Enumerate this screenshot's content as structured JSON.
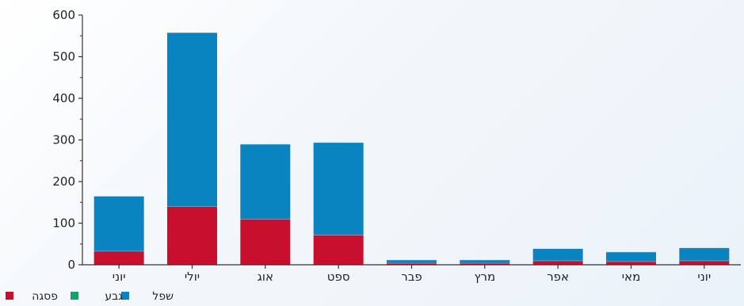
{
  "chart_data": {
    "type": "bar",
    "stacked": true,
    "categories": [
      "יוני",
      "יולי",
      "אוג",
      "ספט",
      "פבר",
      "מרץ",
      "אפר",
      "מאי",
      "יוני"
    ],
    "series": [
      {
        "name": "פסגה",
        "color": "#c8102e",
        "values": [
          33,
          140,
          110,
          72,
          4,
          4,
          10,
          8,
          10
        ]
      },
      {
        "name": "גבע",
        "color": "#16a06a",
        "values": [
          0,
          0,
          0,
          0,
          0,
          0,
          0,
          0,
          0
        ]
      },
      {
        "name": "שפל",
        "color": "#0a84c1",
        "values": [
          132,
          418,
          180,
          222,
          8,
          8,
          29,
          23,
          31
        ]
      }
    ],
    "ylim": [
      0,
      600
    ],
    "yticks": [
      0,
      100,
      200,
      300,
      400,
      500,
      600
    ],
    "grid": false,
    "legend_position": "bottom-left"
  }
}
